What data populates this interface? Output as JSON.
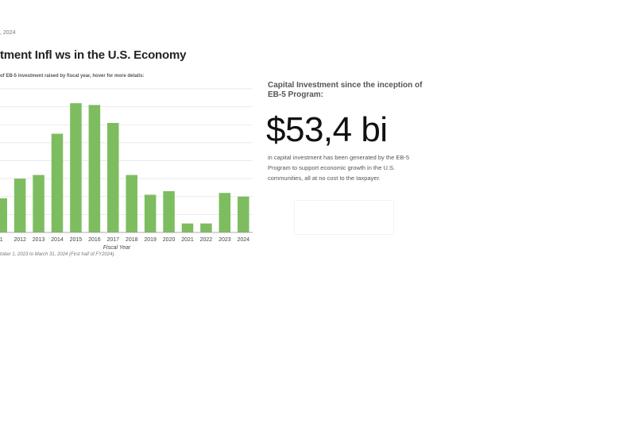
{
  "header": {
    "updated": ", 2024",
    "title": "tment Infl  ws in the U.S. Economy",
    "subtitle": "of EB-5 investment raised by fiscal year, hover for more details:"
  },
  "footer_note": "tober 1, 2023 to March 31, 2024 (First half of FY2024).",
  "stat": {
    "label": "Capital Investment since the inception of EB-5 Program:",
    "value": "$53,4 bi",
    "description": "in capital investment has been generated by the EB-5 Program to support economic growth in the U.S. communities, all at no cost to the taxpayer."
  },
  "colors": {
    "bar": "#7dbd5f",
    "grid": "#e3e3e3",
    "axis": "#999999"
  },
  "chart_data": {
    "type": "bar",
    "title": "",
    "xlabel": "Fiscal Year",
    "ylabel": "",
    "categories": [
      "1",
      "2012",
      "2013",
      "2014",
      "2015",
      "2016",
      "2017",
      "2018",
      "2019",
      "2020",
      "2021",
      "2022",
      "2023",
      "2024"
    ],
    "values": [
      1.9,
      3.0,
      3.2,
      5.5,
      7.2,
      7.1,
      6.1,
      3.2,
      2.1,
      2.3,
      0.5,
      0.5,
      2.2,
      2.0
    ],
    "ylim": [
      0,
      8
    ],
    "grid": true,
    "legend": "none"
  }
}
